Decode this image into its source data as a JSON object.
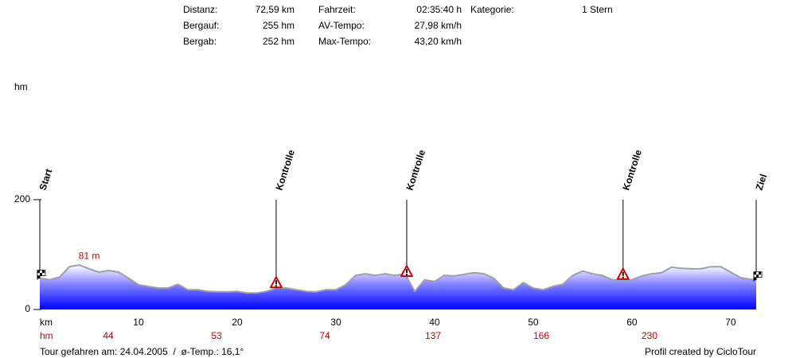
{
  "stats": {
    "rows": [
      [
        "Distanz:",
        "72,59 km",
        "Fahrzeit:",
        "02:35:40 h",
        "Kategorie:",
        "1 Stern"
      ],
      [
        "Bergauf:",
        "255 hm",
        "AV-Tempo:",
        "27,98 km/h"
      ],
      [
        "Bergab:",
        "252 hm",
        "Max-Tempo:",
        "43,20 km/h"
      ]
    ]
  },
  "chart_data": {
    "type": "area",
    "x_label": "km",
    "y_label": "hm",
    "x": [
      0,
      1,
      2,
      3,
      4,
      5,
      6,
      7,
      8,
      9,
      10,
      11,
      12,
      13,
      14,
      15,
      16,
      17,
      18,
      19,
      20,
      21,
      22,
      23,
      24,
      25,
      26,
      27,
      28,
      29,
      30,
      31,
      32,
      33,
      34,
      35,
      36,
      37,
      38,
      39,
      40,
      41,
      42,
      43,
      44,
      45,
      46,
      47,
      48,
      49,
      50,
      51,
      52,
      53,
      54,
      55,
      56,
      57,
      58,
      59,
      60,
      61,
      62,
      63,
      64,
      65,
      66,
      67,
      68,
      69,
      70,
      71,
      72,
      72.59
    ],
    "values": [
      57,
      54,
      59,
      78,
      81,
      74,
      68,
      71,
      68,
      57,
      45,
      42,
      39,
      39,
      46,
      36,
      36,
      33,
      32,
      32,
      33,
      30,
      30,
      33,
      39,
      39,
      36,
      33,
      32,
      36,
      36,
      45,
      62,
      65,
      62,
      65,
      62,
      65,
      33,
      54,
      51,
      62,
      61,
      64,
      67,
      65,
      57,
      39,
      36,
      49,
      39,
      36,
      42,
      46,
      62,
      70,
      65,
      62,
      54,
      54,
      54,
      61,
      65,
      67,
      77,
      75,
      74,
      74,
      78,
      78,
      68,
      58,
      55,
      54
    ],
    "color": "#0000ff",
    "line_color": "#a0a0a0",
    "xlim": [
      0,
      72.59
    ],
    "ylim": [
      0,
      200
    ],
    "xticks": [
      10,
      20,
      30,
      40,
      50,
      60,
      70
    ],
    "yticks": [
      0,
      200
    ],
    "max_label": {
      "text": "81 m",
      "x": 5,
      "value": 81
    },
    "markers": [
      {
        "label": "Start",
        "x": 0
      },
      {
        "label": "Kontrolle",
        "x": 23.95
      },
      {
        "label": "Kontrolle",
        "x": 37.18
      },
      {
        "label": "Kontrolle",
        "x": 59.1
      },
      {
        "label": "Ziel",
        "x": 72.59
      }
    ],
    "climb_label": "hm",
    "climb_values": [
      44,
      53,
      74,
      137,
      166,
      230
    ]
  },
  "footer": {
    "left": "Tour gefahren am: 24.04.2005  /  ø-Temp.: 16,1°",
    "right": "Profil created by CicloTour"
  }
}
